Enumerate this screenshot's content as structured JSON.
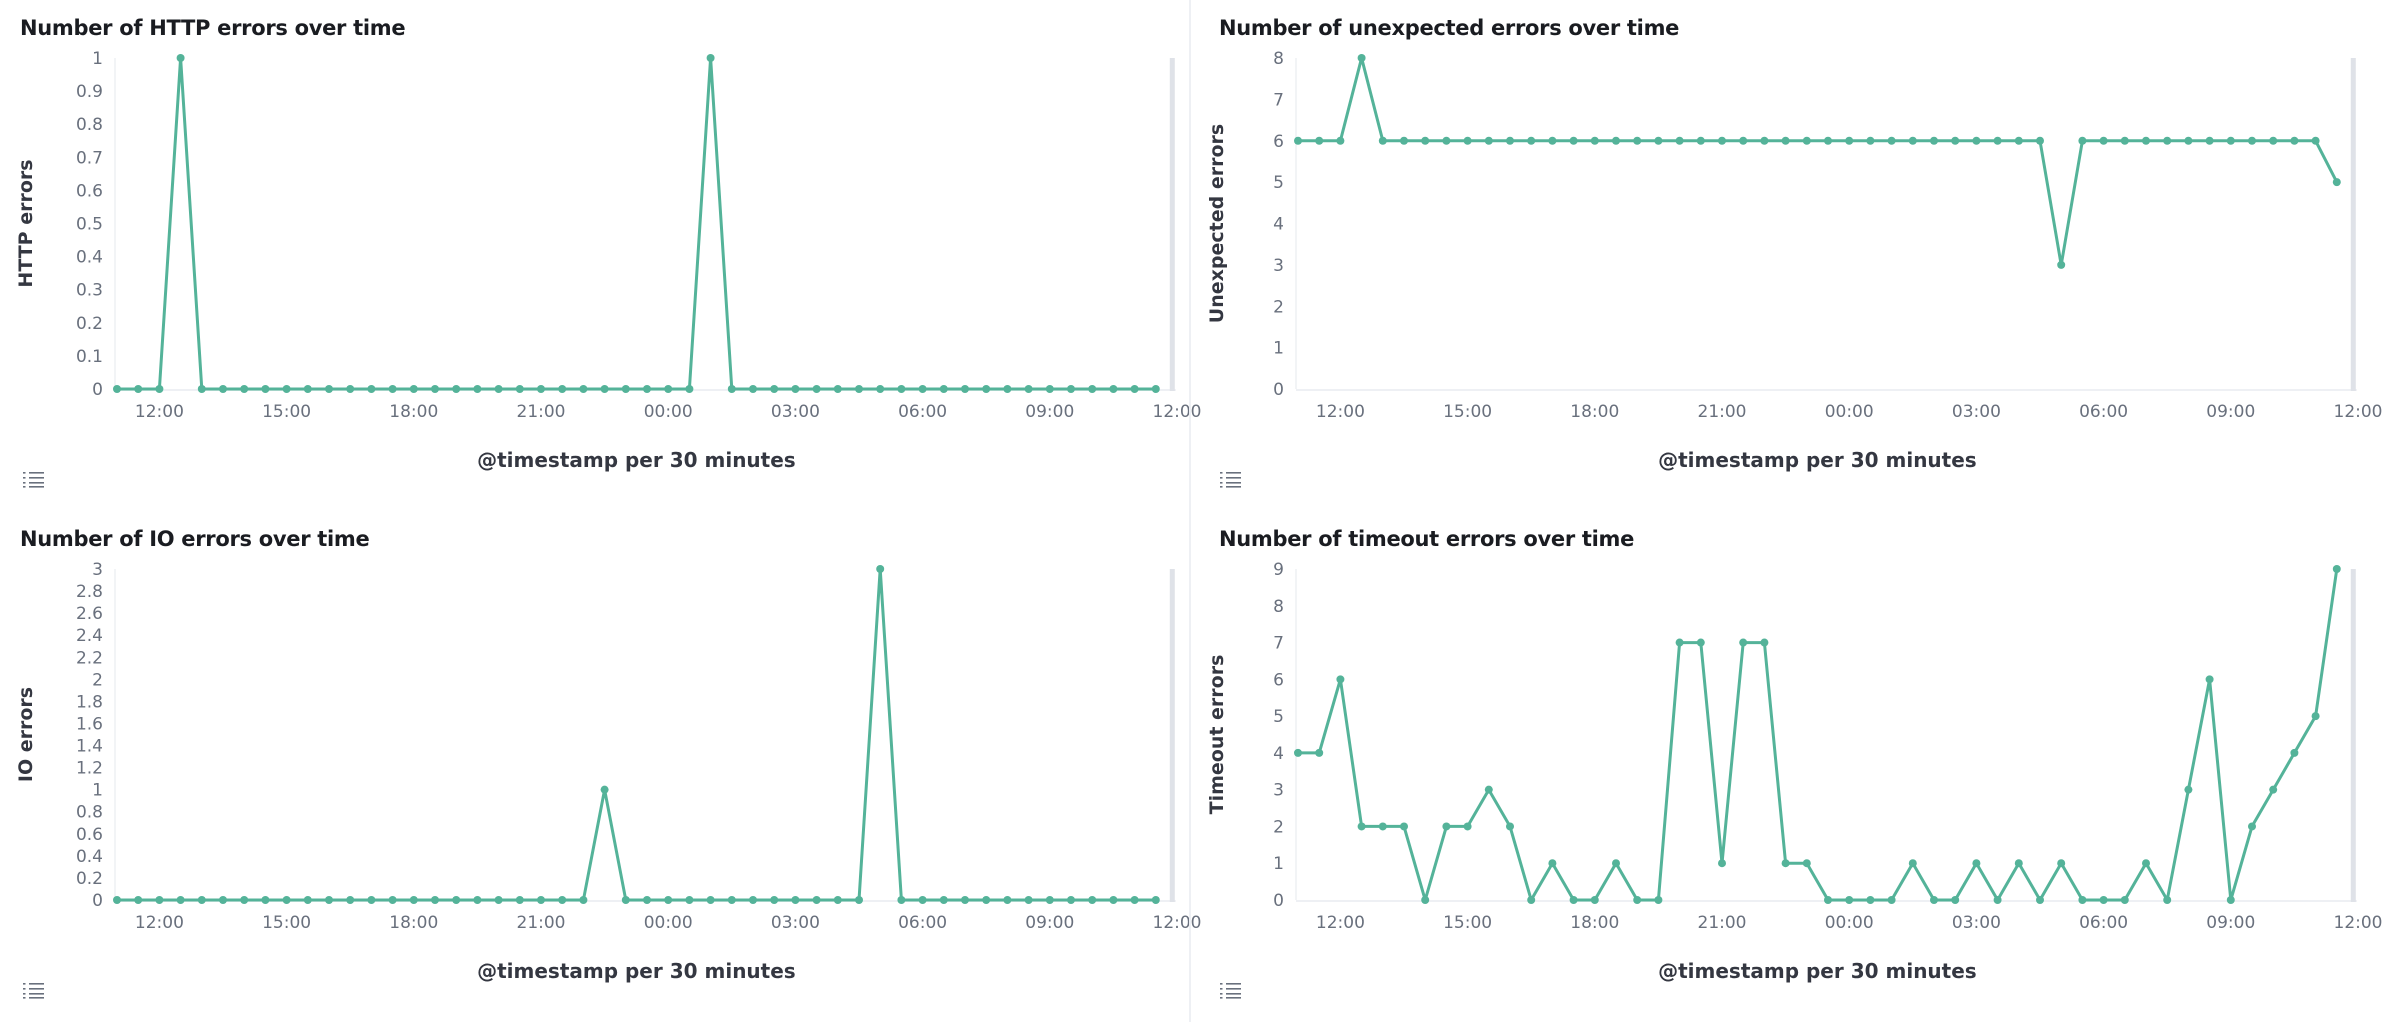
{
  "line_color": "#54B399",
  "chart_data": [
    {
      "type": "line",
      "title": "Number of HTTP errors over time",
      "xlabel": "@timestamp per 30 minutes",
      "ylabel": "HTTP errors",
      "ylim": [
        0,
        1
      ],
      "yticks": [
        "0",
        "0.1",
        "0.2",
        "0.3",
        "0.4",
        "0.5",
        "0.6",
        "0.7",
        "0.8",
        "0.9",
        "1"
      ],
      "xticks": [
        "12:00",
        "15:00",
        "18:00",
        "21:00",
        "00:00",
        "03:00",
        "06:00",
        "09:00",
        "12:00"
      ],
      "x": [
        "11:00",
        "11:30",
        "12:00",
        "12:30",
        "13:00",
        "13:30",
        "14:00",
        "14:30",
        "15:00",
        "15:30",
        "16:00",
        "16:30",
        "17:00",
        "17:30",
        "18:00",
        "18:30",
        "19:00",
        "19:30",
        "20:00",
        "20:30",
        "21:00",
        "21:30",
        "22:00",
        "22:30",
        "23:00",
        "23:30",
        "00:00",
        "00:30",
        "01:00",
        "01:30",
        "02:00",
        "02:30",
        "03:00",
        "03:30",
        "04:00",
        "04:30",
        "05:00",
        "05:30",
        "06:00",
        "06:30",
        "07:00",
        "07:30",
        "08:00",
        "08:30",
        "09:00",
        "09:30",
        "10:00",
        "10:30",
        "11:00",
        "11:30"
      ],
      "values": [
        0,
        0,
        0,
        1,
        0,
        0,
        0,
        0,
        0,
        0,
        0,
        0,
        0,
        0,
        0,
        0,
        0,
        0,
        0,
        0,
        0,
        0,
        0,
        0,
        0,
        0,
        0,
        0,
        1,
        0,
        0,
        0,
        0,
        0,
        0,
        0,
        0,
        0,
        0,
        0,
        0,
        0,
        0,
        0,
        0,
        0,
        0,
        0,
        0,
        0
      ]
    },
    {
      "type": "line",
      "title": "Number of unexpected errors over time",
      "xlabel": "@timestamp per 30 minutes",
      "ylabel": "Unexpected errors",
      "ylim": [
        0,
        8
      ],
      "yticks": [
        "0",
        "1",
        "2",
        "3",
        "4",
        "5",
        "6",
        "7",
        "8"
      ],
      "xticks": [
        "12:00",
        "15:00",
        "18:00",
        "21:00",
        "00:00",
        "03:00",
        "06:00",
        "09:00",
        "12:00"
      ],
      "x": [
        "11:00",
        "11:30",
        "12:00",
        "12:30",
        "13:00",
        "13:30",
        "14:00",
        "14:30",
        "15:00",
        "15:30",
        "16:00",
        "16:30",
        "17:00",
        "17:30",
        "18:00",
        "18:30",
        "19:00",
        "19:30",
        "20:00",
        "20:30",
        "21:00",
        "21:30",
        "22:00",
        "22:30",
        "23:00",
        "23:30",
        "00:00",
        "00:30",
        "01:00",
        "01:30",
        "02:00",
        "02:30",
        "03:00",
        "03:30",
        "04:00",
        "04:30",
        "05:00",
        "05:30",
        "06:00",
        "06:30",
        "07:00",
        "07:30",
        "08:00",
        "08:30",
        "09:00",
        "09:30",
        "10:00",
        "10:30",
        "11:00",
        "11:30"
      ],
      "values": [
        6,
        6,
        6,
        8,
        6,
        6,
        6,
        6,
        6,
        6,
        6,
        6,
        6,
        6,
        6,
        6,
        6,
        6,
        6,
        6,
        6,
        6,
        6,
        6,
        6,
        6,
        6,
        6,
        6,
        6,
        6,
        6,
        6,
        6,
        6,
        6,
        3,
        6,
        6,
        6,
        6,
        6,
        6,
        6,
        6,
        6,
        6,
        6,
        6,
        5
      ]
    },
    {
      "type": "line",
      "title": "Number of IO errors over time",
      "xlabel": "@timestamp per 30 minutes",
      "ylabel": "IO errors",
      "ylim": [
        0,
        3
      ],
      "yticks": [
        "0",
        "0.2",
        "0.4",
        "0.6",
        "0.8",
        "1",
        "1.2",
        "1.4",
        "1.6",
        "1.8",
        "2",
        "2.2",
        "2.4",
        "2.6",
        "2.8",
        "3"
      ],
      "xticks": [
        "12:00",
        "15:00",
        "18:00",
        "21:00",
        "00:00",
        "03:00",
        "06:00",
        "09:00",
        "12:00"
      ],
      "x": [
        "11:00",
        "11:30",
        "12:00",
        "12:30",
        "13:00",
        "13:30",
        "14:00",
        "14:30",
        "15:00",
        "15:30",
        "16:00",
        "16:30",
        "17:00",
        "17:30",
        "18:00",
        "18:30",
        "19:00",
        "19:30",
        "20:00",
        "20:30",
        "21:00",
        "21:30",
        "22:00",
        "22:30",
        "23:00",
        "23:30",
        "00:00",
        "00:30",
        "01:00",
        "01:30",
        "02:00",
        "02:30",
        "03:00",
        "03:30",
        "04:00",
        "04:30",
        "05:00",
        "05:30",
        "06:00",
        "06:30",
        "07:00",
        "07:30",
        "08:00",
        "08:30",
        "09:00",
        "09:30",
        "10:00",
        "10:30",
        "11:00",
        "11:30"
      ],
      "values": [
        0,
        0,
        0,
        0,
        0,
        0,
        0,
        0,
        0,
        0,
        0,
        0,
        0,
        0,
        0,
        0,
        0,
        0,
        0,
        0,
        0,
        0,
        0,
        1,
        0,
        0,
        0,
        0,
        0,
        0,
        0,
        0,
        0,
        0,
        0,
        0,
        3,
        0,
        0,
        0,
        0,
        0,
        0,
        0,
        0,
        0,
        0,
        0,
        0,
        0
      ]
    },
    {
      "type": "line",
      "title": "Number of timeout errors over time",
      "xlabel": "@timestamp per 30 minutes",
      "ylabel": "Timeout errors",
      "ylim": [
        0,
        9
      ],
      "yticks": [
        "0",
        "1",
        "2",
        "3",
        "4",
        "5",
        "6",
        "7",
        "8",
        "9"
      ],
      "xticks": [
        "12:00",
        "15:00",
        "18:00",
        "21:00",
        "00:00",
        "03:00",
        "06:00",
        "09:00",
        "12:00"
      ],
      "x": [
        "11:00",
        "11:30",
        "12:00",
        "12:30",
        "13:00",
        "13:30",
        "14:00",
        "14:30",
        "15:00",
        "15:30",
        "16:00",
        "16:30",
        "17:00",
        "17:30",
        "18:00",
        "18:30",
        "19:00",
        "19:30",
        "20:00",
        "20:30",
        "21:00",
        "21:30",
        "22:00",
        "22:30",
        "23:00",
        "23:30",
        "00:00",
        "00:30",
        "01:00",
        "01:30",
        "02:00",
        "02:30",
        "03:00",
        "03:30",
        "04:00",
        "04:30",
        "05:00",
        "05:30",
        "06:00",
        "06:30",
        "07:00",
        "07:30",
        "08:00",
        "08:30",
        "09:00",
        "09:30",
        "10:00",
        "10:30",
        "11:00",
        "11:30"
      ],
      "values": [
        4,
        4,
        6,
        2,
        2,
        2,
        0,
        2,
        2,
        3,
        2,
        0,
        1,
        0,
        0,
        1,
        0,
        0,
        7,
        7,
        1,
        7,
        7,
        1,
        1,
        0,
        0,
        0,
        0,
        1,
        0,
        0,
        1,
        0,
        1,
        0,
        1,
        0,
        0,
        0,
        1,
        0,
        3,
        6,
        0,
        2,
        3,
        4,
        5,
        9
      ]
    }
  ],
  "legend_toggle_icon": "list-icon"
}
